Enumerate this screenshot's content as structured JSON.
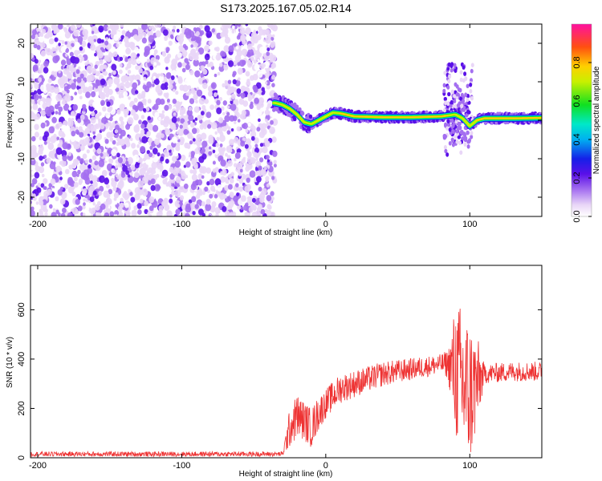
{
  "title": "S173.2025.167.05.02.R14",
  "chart_data": [
    {
      "type": "heatmap",
      "xlabel": "Height of straight line (km)",
      "ylabel": "Frequency (Hz)",
      "xlim": [
        -205,
        150
      ],
      "ylim": [
        -25,
        25
      ],
      "x_ticks": [
        -200,
        -100,
        0,
        100
      ],
      "y_ticks": [
        -20,
        -10,
        0,
        10,
        20
      ],
      "colorbar": {
        "label": "Normalized spectral amplitude",
        "range": [
          0,
          1
        ],
        "ticks": [
          0.0,
          0.2,
          0.4,
          0.6,
          0.8
        ],
        "colormap": "rainbow (white-purple-blue-cyan-green-yellow-orange-red-magenta)"
      },
      "description_series": {
        "noise_region_x": [
          -205,
          -35
        ],
        "ridge": {
          "x": [
            -35,
            -30,
            -25,
            -20,
            -15,
            -10,
            -5,
            0,
            5,
            10,
            20,
            40,
            60,
            80,
            90,
            95,
            100,
            105,
            110,
            130,
            150
          ],
          "y": [
            4.5,
            4.0,
            3.0,
            1.5,
            -0.5,
            -1.0,
            0.0,
            1.0,
            2.0,
            1.8,
            1.0,
            0.8,
            0.8,
            1.0,
            1.5,
            0.5,
            -1.5,
            0.0,
            0.5,
            0.5,
            0.6
          ]
        }
      }
    },
    {
      "type": "line",
      "xlabel": "Height of straight line (km)",
      "ylabel": "SNR (10 * v/v)",
      "xlim": [
        -205,
        150
      ],
      "ylim": [
        0,
        780
      ],
      "x_ticks": [
        -200,
        -100,
        0,
        100
      ],
      "y_ticks": [
        0,
        200,
        400,
        600
      ],
      "color": "#ee3333",
      "envelope": {
        "x": [
          -205,
          -30,
          -25,
          -20,
          -15,
          -10,
          -5,
          0,
          10,
          20,
          40,
          60,
          80,
          85,
          90,
          95,
          100,
          105,
          110,
          130,
          150
        ],
        "mean": [
          15,
          15,
          120,
          170,
          150,
          120,
          180,
          220,
          280,
          300,
          340,
          360,
          380,
          380,
          350,
          300,
          260,
          300,
          340,
          350,
          350
        ],
        "amplitude": [
          10,
          10,
          80,
          90,
          80,
          80,
          70,
          60,
          60,
          55,
          50,
          45,
          40,
          60,
          280,
          320,
          300,
          200,
          40,
          40,
          40
        ]
      }
    }
  ]
}
